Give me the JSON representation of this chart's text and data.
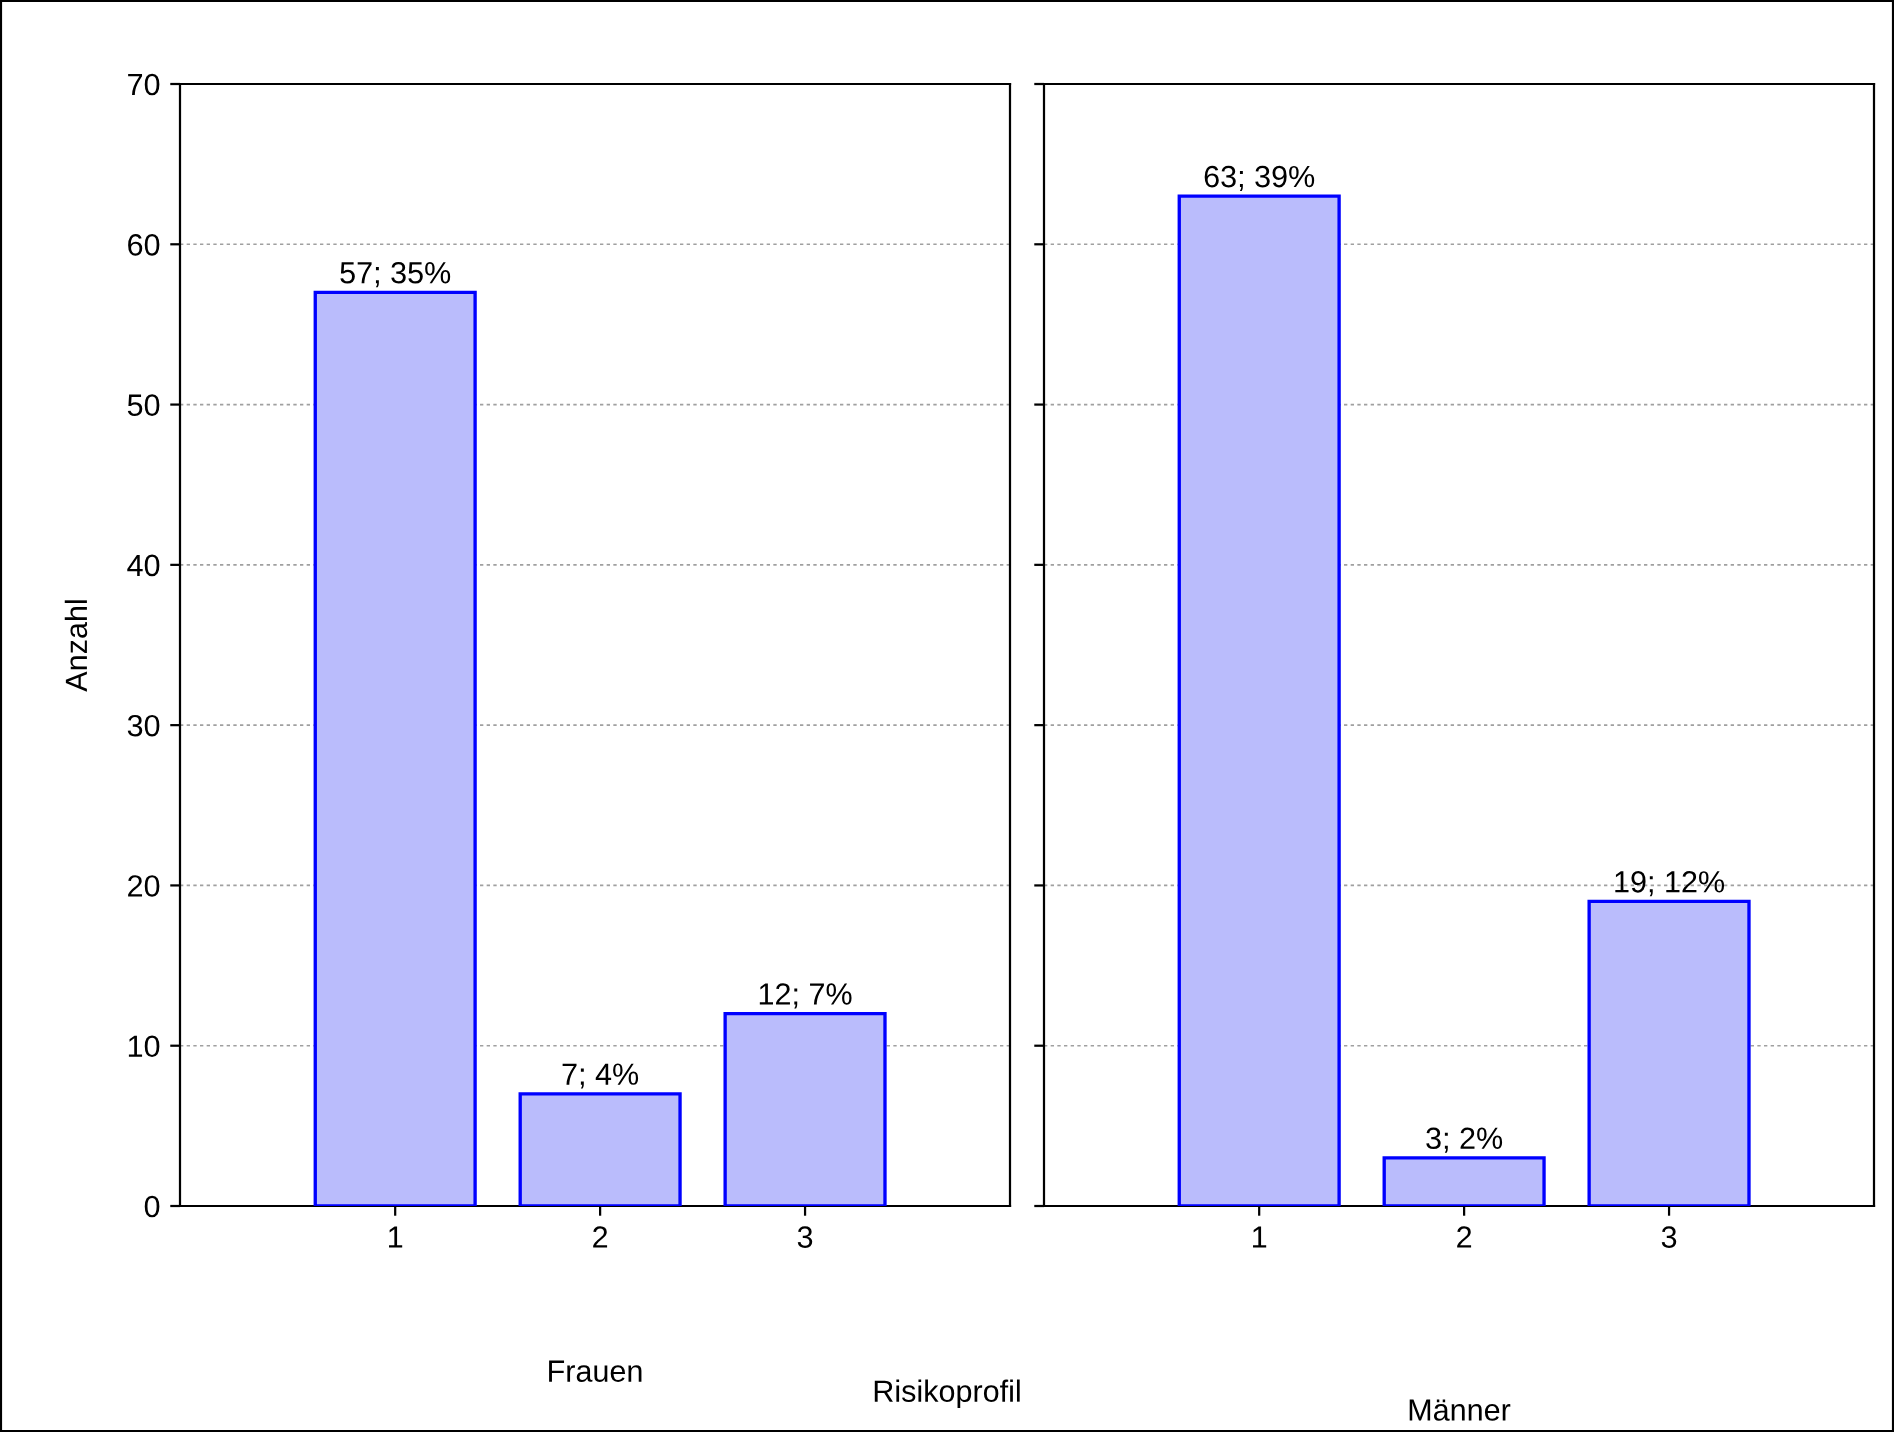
{
  "chart_data": [
    {
      "type": "bar",
      "categories": [
        "1",
        "2",
        "3"
      ],
      "values": [
        57,
        7,
        12
      ],
      "value_labels": [
        "57; 35%",
        "7; 4%",
        "12; 7%"
      ],
      "color": "#babcfc",
      "xlabel": "Frauen",
      "ylabel": "Anzahl",
      "ylim": [
        0,
        70
      ],
      "yticks": [
        0,
        10,
        20,
        30,
        40,
        50,
        60,
        70
      ],
      "grid": "y",
      "annotations": [
        "Risikoprofil"
      ]
    },
    {
      "type": "bar",
      "categories": [
        "1",
        "2",
        "3"
      ],
      "values": [
        63,
        3,
        19
      ],
      "value_labels": [
        "63; 39%",
        "3; 2%",
        "19; 12%"
      ],
      "color": "#babcfc",
      "xlabel": "Männer",
      "ylim": [
        0,
        70
      ],
      "yticks": [
        0,
        10,
        20,
        30,
        40,
        50,
        60,
        70
      ],
      "grid": "y",
      "tick_labels": "x"
    }
  ]
}
